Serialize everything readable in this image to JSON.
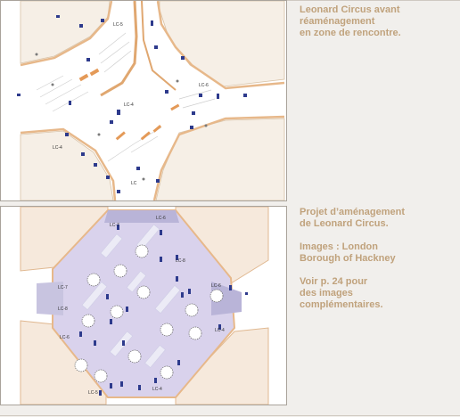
{
  "figures": [
    {
      "caption_lines": [
        "Leonard Circus avant",
        "réaménagement",
        "en zone de rencontre."
      ],
      "labels": [
        "LC-5",
        "LC-6",
        "LC-4",
        "LC-4",
        "LC"
      ]
    },
    {
      "caption_paragraphs": [
        [
          "Projet d’aménagement",
          "de Leonard Circus."
        ],
        [
          "Images : London",
          "Borough of Hackney"
        ],
        [
          "Voir p. 24 pour",
          "des images",
          "complémentaires."
        ]
      ],
      "labels": [
        "LC-6",
        "LC-7",
        "LC-8",
        "LC-6",
        "LC-7",
        "LC-8",
        "LC-6",
        "LC-4",
        "LC-5",
        "LC-4"
      ]
    }
  ],
  "colors": {
    "caption": "#c0a27c",
    "page_background": "#f1efec",
    "road_edge": "#e7b88a",
    "plaza_fill": "#d9d2ec",
    "marker": "#2d3a8c"
  }
}
